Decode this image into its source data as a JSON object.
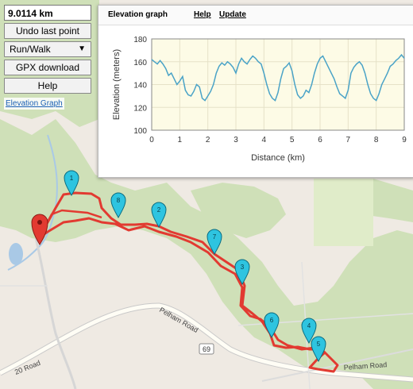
{
  "controls": {
    "distance": "9.0114 km",
    "undo_label": "Undo last point",
    "mode_value": "Run/Walk",
    "gpx_label": "GPX download",
    "help_label": "Help",
    "elevation_link": "Elevation Graph"
  },
  "elevation_window": {
    "title": "Elevation graph",
    "help": "Help",
    "update": "Update"
  },
  "chart_data": {
    "type": "line",
    "xlabel": "Distance (km)",
    "ylabel": "Elevation (meters)",
    "xlim": [
      0,
      9
    ],
    "ylim": [
      100,
      180
    ],
    "x_ticks": [
      "0",
      "1",
      "2",
      "3",
      "4",
      "5",
      "6",
      "7",
      "8",
      "9"
    ],
    "y_ticks": [
      "100",
      "120",
      "140",
      "160",
      "180"
    ],
    "grid": true,
    "series": [
      {
        "color": "#4aa3c7",
        "x": [
          0,
          0.1,
          0.2,
          0.3,
          0.4,
          0.5,
          0.6,
          0.7,
          0.8,
          0.9,
          1.0,
          1.1,
          1.2,
          1.3,
          1.4,
          1.5,
          1.6,
          1.7,
          1.8,
          1.9,
          2.0,
          2.1,
          2.2,
          2.3,
          2.4,
          2.5,
          2.6,
          2.7,
          2.8,
          2.9,
          3.0,
          3.1,
          3.2,
          3.3,
          3.4,
          3.5,
          3.6,
          3.7,
          3.8,
          3.9,
          4.0,
          4.1,
          4.2,
          4.3,
          4.4,
          4.5,
          4.6,
          4.7,
          4.8,
          4.9,
          5.0,
          5.1,
          5.2,
          5.3,
          5.4,
          5.5,
          5.6,
          5.7,
          5.8,
          5.9,
          6.0,
          6.1,
          6.2,
          6.3,
          6.4,
          6.5,
          6.6,
          6.7,
          6.8,
          6.9,
          7.0,
          7.1,
          7.2,
          7.3,
          7.4,
          7.5,
          7.6,
          7.7,
          7.8,
          7.9,
          8.0,
          8.1,
          8.2,
          8.3,
          8.4,
          8.5,
          8.6,
          8.7,
          8.8,
          8.9,
          9.0
        ],
        "y": [
          162,
          160,
          158,
          161,
          158,
          154,
          148,
          150,
          145,
          140,
          143,
          147,
          135,
          131,
          130,
          134,
          140,
          138,
          128,
          126,
          130,
          134,
          140,
          150,
          156,
          159,
          157,
          160,
          158,
          155,
          150,
          158,
          163,
          160,
          158,
          162,
          165,
          163,
          160,
          158,
          150,
          140,
          132,
          128,
          126,
          133,
          145,
          154,
          156,
          159,
          152,
          140,
          131,
          128,
          130,
          135,
          133,
          140,
          150,
          158,
          163,
          165,
          160,
          155,
          150,
          145,
          138,
          132,
          130,
          128,
          135,
          150,
          155,
          158,
          160,
          157,
          150,
          140,
          132,
          128,
          126,
          132,
          140,
          145,
          150,
          156,
          158,
          161,
          163,
          166,
          163
        ]
      }
    ]
  },
  "map": {
    "road_labels": [
      "Pelham Road",
      "Pelham Road",
      "20 Road"
    ],
    "route_number": "69",
    "waypoints": [
      "1",
      "2",
      "3",
      "4",
      "5",
      "6",
      "7",
      "8"
    ]
  }
}
